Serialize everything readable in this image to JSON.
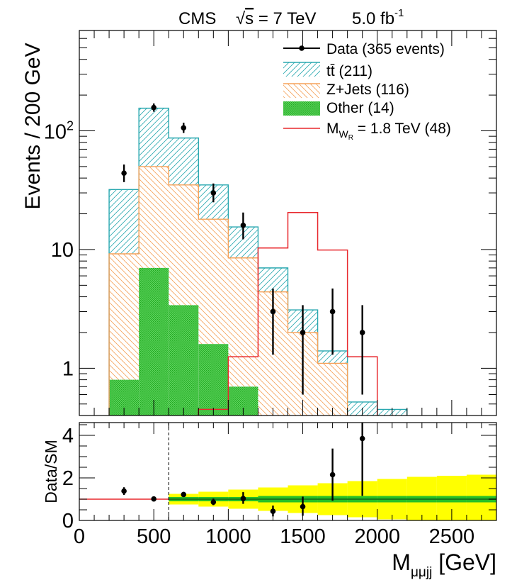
{
  "header": {
    "experiment": "CMS",
    "energy_prefix": "√",
    "energy_s": "s",
    "energy_rest": " = 7 TeV",
    "lumi": "5.0 fb",
    "lumi_exp": "-1"
  },
  "axes": {
    "ylabel_main": "Events / 200 GeV",
    "ylabel_ratio": "Data/SM",
    "xlabel_main": "M",
    "xlabel_sub": "μμjj",
    "xlabel_unit": " [GeV]"
  },
  "legend": {
    "data": "Data (365 events)",
    "ttbar": "tt̄ (211)",
    "zjets": "Z+Jets (116)",
    "other": "Other (14)",
    "signal_main": "M",
    "signal_sub": "W",
    "signal_subsub": "R",
    "signal_rest": " = 1.8 TeV (48)"
  },
  "colors": {
    "ttbar": "#29a8b0",
    "zjets": "#f5a25a",
    "other": "#2ec22e",
    "signal": "#e8282d",
    "data": "#000000",
    "band_stat": "#26c026",
    "band_syst": "#ffff00"
  },
  "chart_data": [
    {
      "type": "histogram",
      "scale": "log",
      "bin_edges": [
        200,
        400,
        600,
        800,
        1000,
        1200,
        1400,
        1600,
        1800,
        2000,
        2200
      ],
      "xlim": [
        0,
        2800
      ],
      "ylim": [
        0.4,
        700
      ],
      "yticks": [
        1,
        10,
        100
      ],
      "ytick_labels": [
        "1",
        "10",
        "10²"
      ],
      "grid": false,
      "legend_position": "top-right",
      "stack": [
        {
          "name": "Other (14)",
          "values": [
            0.8,
            7.0,
            3.4,
            1.6,
            0.7,
            0,
            0,
            0,
            0,
            0
          ]
        },
        {
          "name": "Z+Jets (116)",
          "values": [
            9.2,
            50,
            35,
            18,
            8.5,
            4.4,
            2.0,
            1.1,
            0,
            0
          ]
        },
        {
          "name": "tt̄ (211)",
          "values": [
            32,
            155,
            87,
            35,
            15.5,
            7.0,
            3.1,
            1.4,
            0.52,
            0.45
          ]
        }
      ],
      "signal": {
        "name": "M_WR = 1.8 TeV (48)",
        "values": [
          0,
          0,
          0,
          0.45,
          1.25,
          10.3,
          20.5,
          9.9,
          1.25,
          0
        ]
      },
      "data": {
        "name": "Data (365 events)",
        "x": [
          300,
          500,
          700,
          900,
          1100,
          1300,
          1500,
          1700,
          1900
        ],
        "y": [
          44,
          157,
          106,
          30,
          16,
          3,
          2,
          3,
          2
        ],
        "y_low": [
          37,
          145,
          96,
          25,
          12.2,
          1.3,
          0.6,
          1.3,
          0.6
        ],
        "y_high": [
          52,
          170,
          117,
          36,
          20.5,
          4.7,
          3.4,
          4.7,
          3.4
        ]
      }
    },
    {
      "type": "ratio",
      "xlabel": "M_μμjj [GeV]",
      "ylabel": "Data/SM",
      "xlim": [
        0,
        2800
      ],
      "ylim": [
        0,
        4.6
      ],
      "xticks": [
        0,
        500,
        1000,
        1500,
        2000,
        2500
      ],
      "yticks": [
        0,
        2,
        4
      ],
      "cut_line": 600,
      "unity_line": 1,
      "points": {
        "x": [
          300,
          500,
          700,
          900,
          1100,
          1300,
          1500,
          1700,
          1900
        ],
        "y": [
          1.38,
          1.01,
          1.22,
          0.86,
          1.03,
          0.43,
          0.65,
          2.15,
          3.85
        ],
        "y_low": [
          1.2,
          0.92,
          1.1,
          0.72,
          0.78,
          0.19,
          0.22,
          0.93,
          1.16
        ],
        "y_high": [
          1.56,
          1.1,
          1.34,
          1.03,
          1.33,
          0.7,
          1.12,
          3.38,
          4.6
        ]
      },
      "band_edges": [
        600,
        800,
        1000,
        1200,
        1400,
        1600,
        1800,
        2000,
        2200,
        2400,
        2600,
        2800
      ],
      "stat_band_half": [
        0.1,
        0.1,
        0.1,
        0.15,
        0.15,
        0.15,
        0.15,
        0.15,
        0.15,
        0.15,
        0.15
      ],
      "syst_band_half": [
        0.25,
        0.35,
        0.45,
        0.55,
        0.65,
        0.75,
        0.85,
        0.95,
        1.05,
        1.1,
        1.15
      ]
    }
  ]
}
